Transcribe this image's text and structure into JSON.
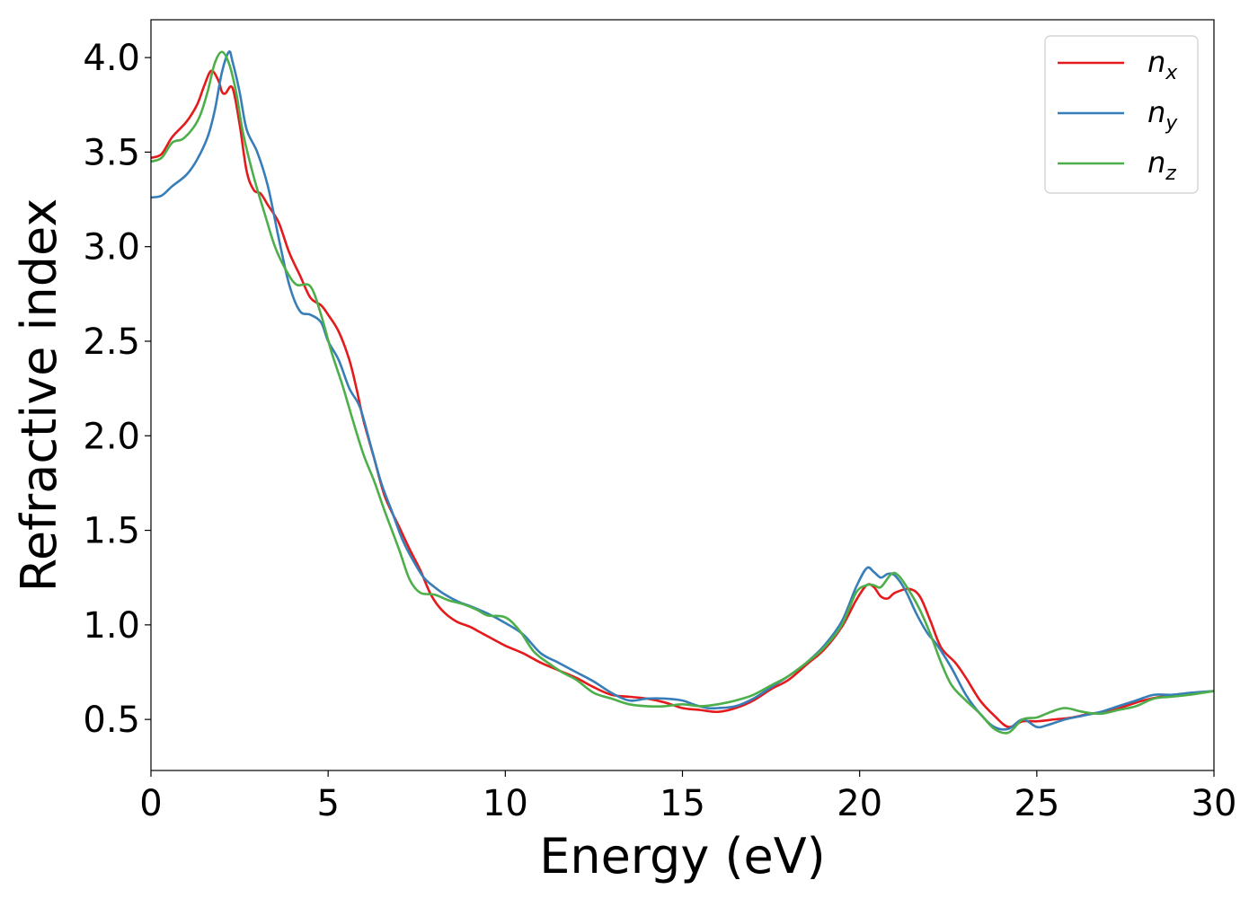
{
  "chart_data": {
    "type": "line",
    "title": "",
    "xlabel": "Energy (eV)",
    "ylabel": "Refractive index",
    "xlim": [
      0,
      30
    ],
    "ylim": [
      0.23,
      4.2
    ],
    "xticks": [
      0,
      5,
      10,
      15,
      20,
      25,
      30
    ],
    "xtick_labels": [
      "0",
      "5",
      "10",
      "15",
      "20",
      "25",
      "30"
    ],
    "yticks": [
      0.5,
      1.0,
      1.5,
      2.0,
      2.5,
      3.0,
      3.5,
      4.0
    ],
    "ytick_labels": [
      "0.5",
      "1.0",
      "1.5",
      "2.0",
      "2.5",
      "3.0",
      "3.5",
      "4.0"
    ],
    "grid": false,
    "legend_position": "top-right",
    "series": [
      {
        "name": "n",
        "subscript": "x",
        "color": "#e41a1c",
        "points": [
          [
            0,
            3.47
          ],
          [
            0.3,
            3.49
          ],
          [
            0.6,
            3.58
          ],
          [
            1.0,
            3.66
          ],
          [
            1.3,
            3.75
          ],
          [
            1.5,
            3.85
          ],
          [
            1.7,
            3.93
          ],
          [
            1.9,
            3.88
          ],
          [
            2.0,
            3.82
          ],
          [
            2.1,
            3.81
          ],
          [
            2.3,
            3.84
          ],
          [
            2.5,
            3.65
          ],
          [
            2.7,
            3.4
          ],
          [
            2.9,
            3.3
          ],
          [
            3.1,
            3.28
          ],
          [
            3.3,
            3.22
          ],
          [
            3.6,
            3.13
          ],
          [
            3.9,
            2.97
          ],
          [
            4.2,
            2.85
          ],
          [
            4.5,
            2.73
          ],
          [
            4.8,
            2.69
          ],
          [
            5.0,
            2.64
          ],
          [
            5.3,
            2.55
          ],
          [
            5.6,
            2.4
          ],
          [
            5.8,
            2.25
          ],
          [
            6.0,
            2.08
          ],
          [
            6.3,
            1.88
          ],
          [
            6.6,
            1.68
          ],
          [
            7.0,
            1.52
          ],
          [
            7.3,
            1.4
          ],
          [
            7.6,
            1.29
          ],
          [
            7.9,
            1.16
          ],
          [
            8.2,
            1.08
          ],
          [
            8.6,
            1.02
          ],
          [
            9.0,
            0.99
          ],
          [
            9.3,
            0.96
          ],
          [
            9.6,
            0.93
          ],
          [
            10.0,
            0.89
          ],
          [
            10.5,
            0.85
          ],
          [
            11.0,
            0.8
          ],
          [
            11.5,
            0.76
          ],
          [
            12.0,
            0.72
          ],
          [
            12.5,
            0.67
          ],
          [
            13.0,
            0.63
          ],
          [
            13.5,
            0.62
          ],
          [
            14.0,
            0.61
          ],
          [
            14.5,
            0.59
          ],
          [
            15.0,
            0.56
          ],
          [
            15.5,
            0.55
          ],
          [
            16.0,
            0.54
          ],
          [
            16.5,
            0.56
          ],
          [
            17.0,
            0.6
          ],
          [
            17.5,
            0.66
          ],
          [
            18.0,
            0.71
          ],
          [
            18.5,
            0.79
          ],
          [
            19.0,
            0.87
          ],
          [
            19.5,
            0.99
          ],
          [
            19.9,
            1.13
          ],
          [
            20.2,
            1.21
          ],
          [
            20.4,
            1.2
          ],
          [
            20.6,
            1.15
          ],
          [
            20.8,
            1.14
          ],
          [
            21.0,
            1.17
          ],
          [
            21.4,
            1.19
          ],
          [
            21.7,
            1.15
          ],
          [
            22.0,
            1.02
          ],
          [
            22.3,
            0.88
          ],
          [
            22.7,
            0.8
          ],
          [
            23.0,
            0.72
          ],
          [
            23.4,
            0.6
          ],
          [
            23.8,
            0.52
          ],
          [
            24.2,
            0.46
          ],
          [
            24.6,
            0.49
          ],
          [
            25.0,
            0.49
          ],
          [
            25.5,
            0.5
          ],
          [
            26.0,
            0.51
          ],
          [
            26.5,
            0.53
          ],
          [
            27.0,
            0.54
          ],
          [
            27.5,
            0.57
          ],
          [
            28.0,
            0.6
          ],
          [
            28.5,
            0.62
          ],
          [
            29.0,
            0.63
          ],
          [
            29.5,
            0.64
          ],
          [
            30.0,
            0.65
          ]
        ]
      },
      {
        "name": "n",
        "subscript": "y",
        "color": "#377eb8",
        "points": [
          [
            0,
            3.26
          ],
          [
            0.3,
            3.27
          ],
          [
            0.6,
            3.32
          ],
          [
            1.0,
            3.38
          ],
          [
            1.3,
            3.46
          ],
          [
            1.6,
            3.58
          ],
          [
            1.8,
            3.72
          ],
          [
            2.0,
            3.92
          ],
          [
            2.2,
            4.03
          ],
          [
            2.3,
            3.98
          ],
          [
            2.5,
            3.82
          ],
          [
            2.7,
            3.62
          ],
          [
            3.0,
            3.5
          ],
          [
            3.3,
            3.32
          ],
          [
            3.6,
            3.05
          ],
          [
            3.9,
            2.8
          ],
          [
            4.2,
            2.66
          ],
          [
            4.5,
            2.64
          ],
          [
            4.8,
            2.6
          ],
          [
            5.0,
            2.5
          ],
          [
            5.3,
            2.4
          ],
          [
            5.6,
            2.25
          ],
          [
            5.9,
            2.15
          ],
          [
            6.2,
            1.95
          ],
          [
            6.5,
            1.75
          ],
          [
            6.8,
            1.6
          ],
          [
            7.1,
            1.45
          ],
          [
            7.4,
            1.34
          ],
          [
            7.7,
            1.25
          ],
          [
            8.0,
            1.2
          ],
          [
            8.3,
            1.16
          ],
          [
            8.7,
            1.12
          ],
          [
            9.0,
            1.1
          ],
          [
            9.5,
            1.06
          ],
          [
            10.0,
            1.01
          ],
          [
            10.5,
            0.95
          ],
          [
            11.0,
            0.85
          ],
          [
            11.5,
            0.8
          ],
          [
            12.0,
            0.75
          ],
          [
            12.5,
            0.7
          ],
          [
            13.0,
            0.64
          ],
          [
            13.5,
            0.6
          ],
          [
            14.0,
            0.61
          ],
          [
            14.5,
            0.61
          ],
          [
            15.0,
            0.6
          ],
          [
            15.3,
            0.58
          ],
          [
            15.7,
            0.56
          ],
          [
            16.0,
            0.56
          ],
          [
            16.5,
            0.57
          ],
          [
            17.0,
            0.61
          ],
          [
            17.5,
            0.67
          ],
          [
            18.0,
            0.73
          ],
          [
            18.5,
            0.8
          ],
          [
            19.0,
            0.89
          ],
          [
            19.5,
            1.02
          ],
          [
            19.9,
            1.2
          ],
          [
            20.2,
            1.3
          ],
          [
            20.4,
            1.28
          ],
          [
            20.6,
            1.25
          ],
          [
            20.8,
            1.27
          ],
          [
            21.0,
            1.26
          ],
          [
            21.3,
            1.18
          ],
          [
            21.6,
            1.06
          ],
          [
            21.9,
            0.96
          ],
          [
            22.2,
            0.89
          ],
          [
            22.6,
            0.77
          ],
          [
            23.0,
            0.63
          ],
          [
            23.4,
            0.53
          ],
          [
            23.8,
            0.46
          ],
          [
            24.2,
            0.45
          ],
          [
            24.6,
            0.5
          ],
          [
            25.0,
            0.46
          ],
          [
            25.3,
            0.47
          ],
          [
            25.8,
            0.5
          ],
          [
            26.3,
            0.52
          ],
          [
            26.8,
            0.54
          ],
          [
            27.3,
            0.57
          ],
          [
            27.8,
            0.6
          ],
          [
            28.3,
            0.63
          ],
          [
            28.8,
            0.63
          ],
          [
            29.3,
            0.64
          ],
          [
            30.0,
            0.65
          ]
        ]
      },
      {
        "name": "n",
        "subscript": "z",
        "color": "#4daf4a",
        "points": [
          [
            0,
            3.45
          ],
          [
            0.3,
            3.47
          ],
          [
            0.6,
            3.55
          ],
          [
            0.9,
            3.57
          ],
          [
            1.2,
            3.63
          ],
          [
            1.4,
            3.7
          ],
          [
            1.6,
            3.82
          ],
          [
            1.8,
            3.97
          ],
          [
            2.0,
            4.03
          ],
          [
            2.2,
            3.97
          ],
          [
            2.4,
            3.82
          ],
          [
            2.6,
            3.6
          ],
          [
            2.9,
            3.37
          ],
          [
            3.2,
            3.18
          ],
          [
            3.5,
            3.0
          ],
          [
            3.8,
            2.88
          ],
          [
            4.1,
            2.8
          ],
          [
            4.5,
            2.79
          ],
          [
            4.8,
            2.64
          ],
          [
            5.1,
            2.44
          ],
          [
            5.4,
            2.27
          ],
          [
            5.7,
            2.08
          ],
          [
            6.0,
            1.9
          ],
          [
            6.3,
            1.76
          ],
          [
            6.6,
            1.6
          ],
          [
            7.0,
            1.4
          ],
          [
            7.3,
            1.24
          ],
          [
            7.6,
            1.17
          ],
          [
            8.0,
            1.16
          ],
          [
            8.4,
            1.13
          ],
          [
            8.8,
            1.11
          ],
          [
            9.2,
            1.08
          ],
          [
            9.5,
            1.05
          ],
          [
            10.0,
            1.04
          ],
          [
            10.4,
            0.97
          ],
          [
            10.8,
            0.86
          ],
          [
            11.2,
            0.8
          ],
          [
            11.6,
            0.75
          ],
          [
            12.0,
            0.71
          ],
          [
            12.5,
            0.64
          ],
          [
            13.0,
            0.61
          ],
          [
            13.5,
            0.58
          ],
          [
            14.0,
            0.57
          ],
          [
            14.5,
            0.57
          ],
          [
            15.0,
            0.58
          ],
          [
            15.5,
            0.57
          ],
          [
            16.0,
            0.58
          ],
          [
            16.5,
            0.6
          ],
          [
            17.0,
            0.63
          ],
          [
            17.5,
            0.68
          ],
          [
            18.0,
            0.73
          ],
          [
            18.5,
            0.8
          ],
          [
            19.0,
            0.88
          ],
          [
            19.5,
            1.0
          ],
          [
            19.9,
            1.17
          ],
          [
            20.2,
            1.21
          ],
          [
            20.4,
            1.21
          ],
          [
            20.6,
            1.2
          ],
          [
            20.9,
            1.27
          ],
          [
            21.1,
            1.26
          ],
          [
            21.4,
            1.18
          ],
          [
            21.7,
            1.08
          ],
          [
            22.0,
            0.95
          ],
          [
            22.3,
            0.8
          ],
          [
            22.6,
            0.68
          ],
          [
            23.0,
            0.6
          ],
          [
            23.4,
            0.53
          ],
          [
            23.8,
            0.45
          ],
          [
            24.2,
            0.43
          ],
          [
            24.6,
            0.5
          ],
          [
            25.0,
            0.51
          ],
          [
            25.4,
            0.54
          ],
          [
            25.8,
            0.56
          ],
          [
            26.3,
            0.54
          ],
          [
            26.8,
            0.53
          ],
          [
            27.3,
            0.55
          ],
          [
            27.8,
            0.57
          ],
          [
            28.3,
            0.61
          ],
          [
            28.8,
            0.62
          ],
          [
            29.3,
            0.63
          ],
          [
            30.0,
            0.65
          ]
        ]
      }
    ]
  }
}
